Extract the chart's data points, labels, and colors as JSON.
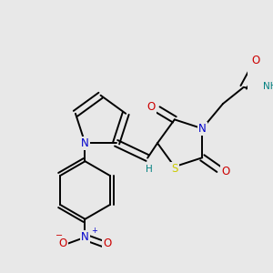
{
  "bg_color": "#e8e8e8",
  "bond_color": "#000000",
  "bond_width": 1.4,
  "atom_colors": {
    "N": "#0000cc",
    "O": "#cc0000",
    "S": "#cccc00",
    "H_label": "#008080",
    "C": "#000000"
  },
  "font_size_atom": 8.5,
  "font_size_small": 7.5
}
